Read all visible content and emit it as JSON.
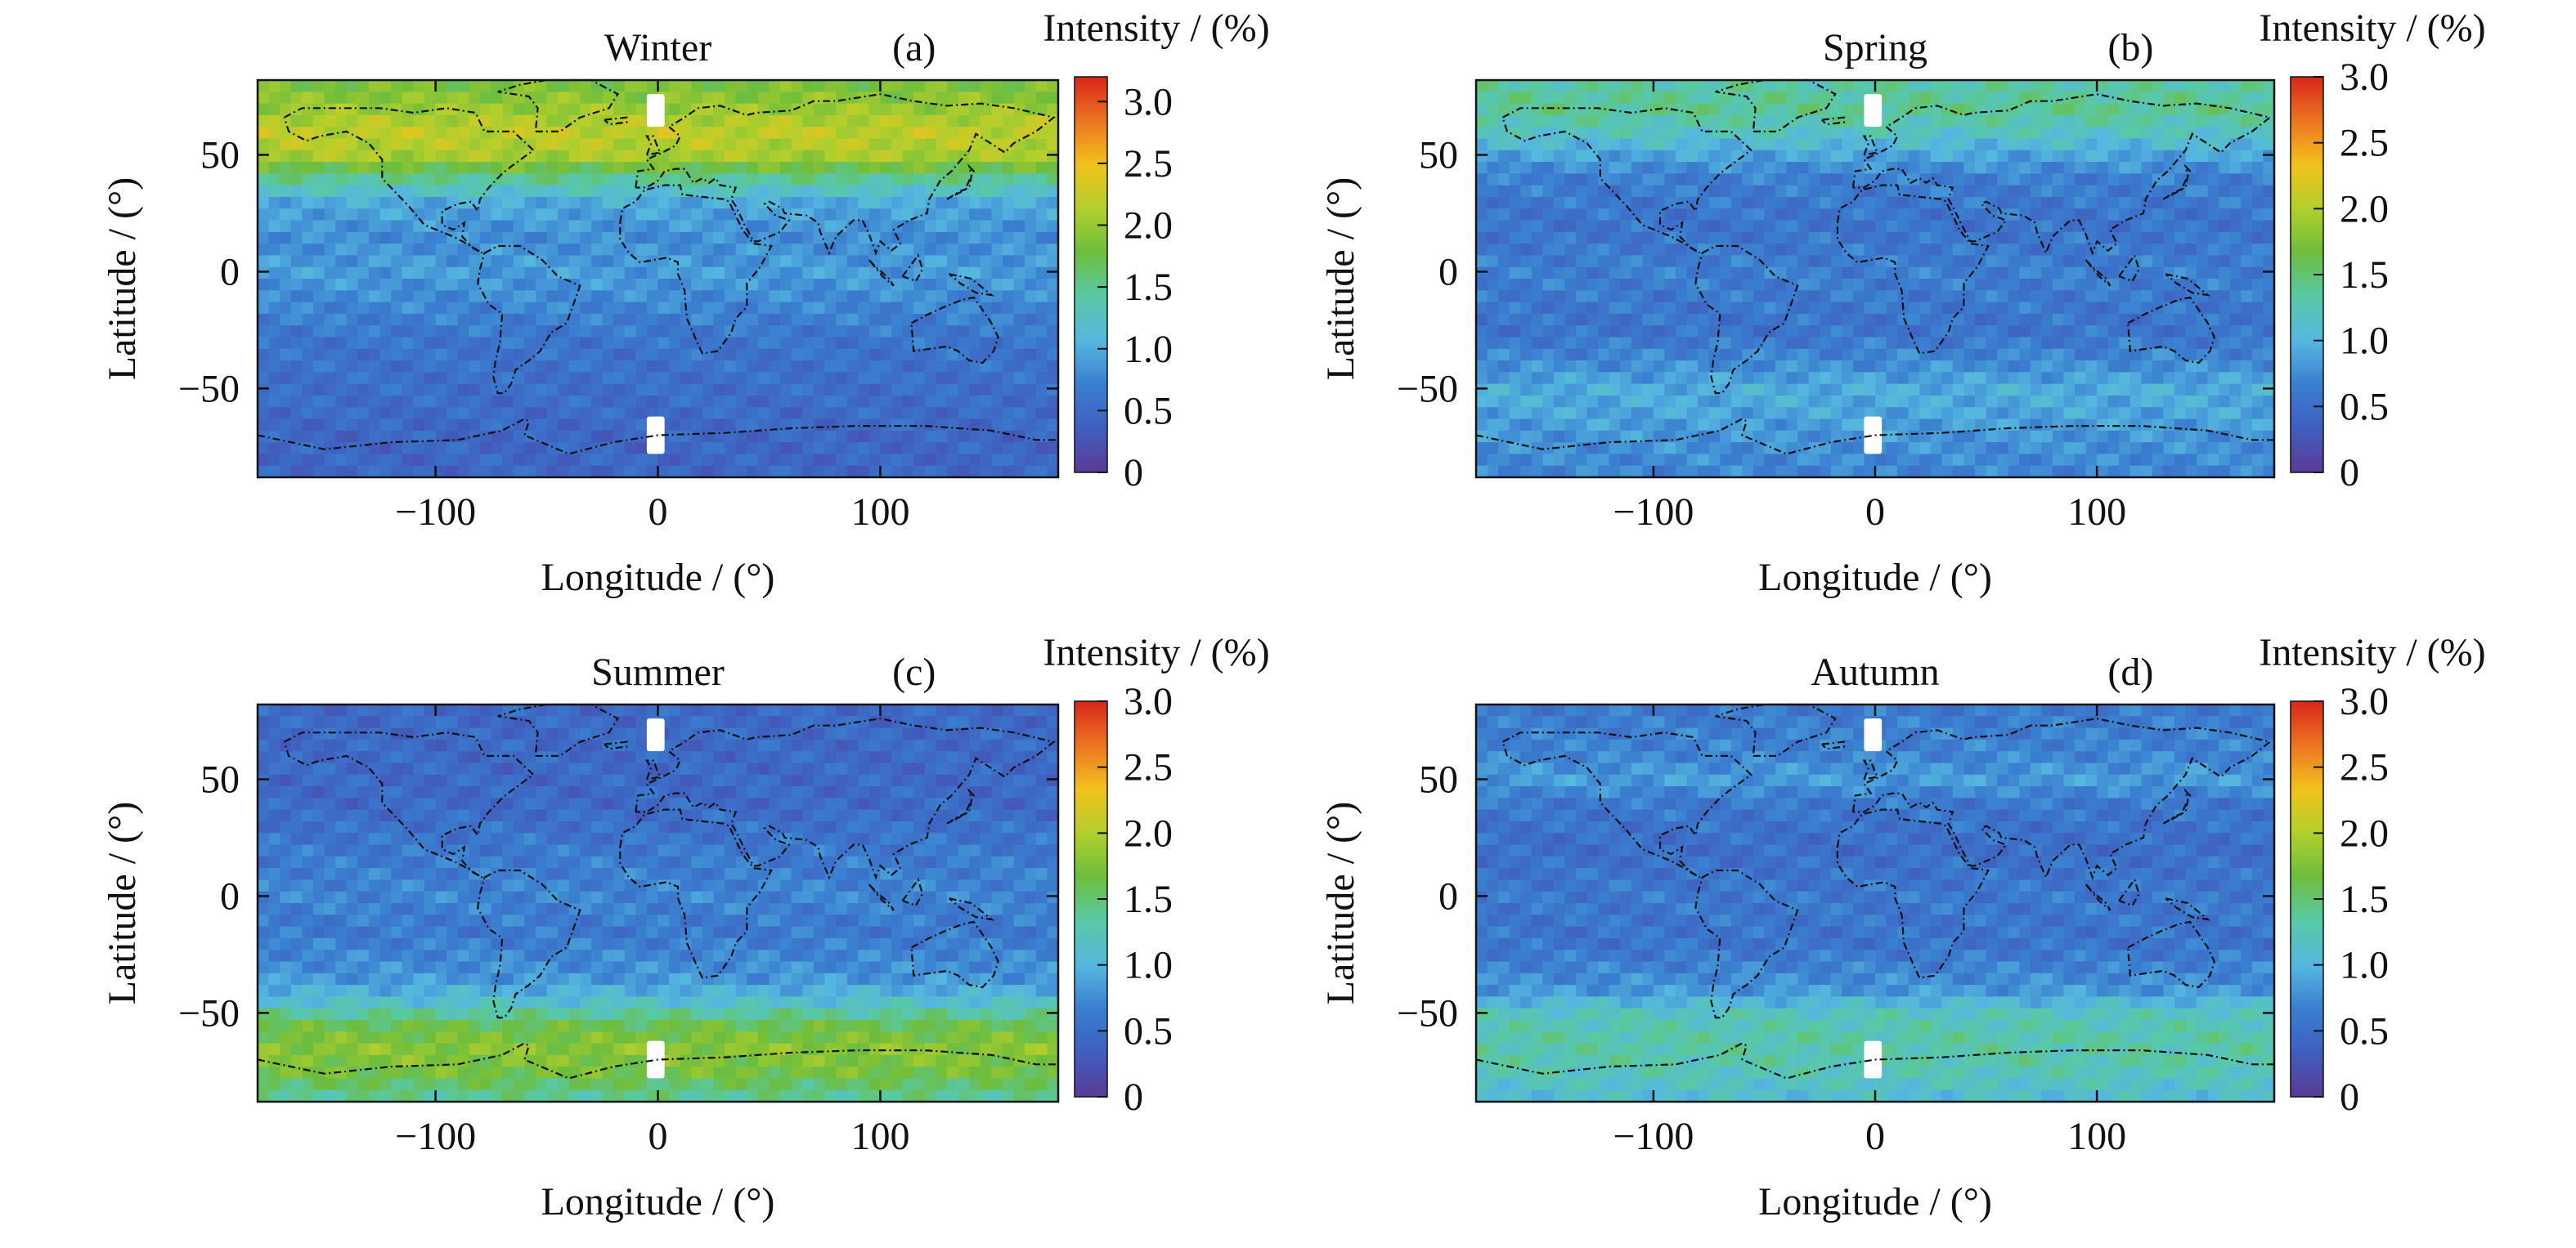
{
  "chart_data": [
    {
      "type": "heatmap",
      "title": "Winter",
      "panel_label": "(a)",
      "xlabel": "Longitude / (°)",
      "ylabel": "Latitude / (°)",
      "colorbar_label": "Intensity / (%)",
      "xlim": [
        -180,
        180
      ],
      "ylim": [
        -88,
        82
      ],
      "xticks": [
        -100,
        0,
        100
      ],
      "yticks": [
        -50,
        0,
        50
      ],
      "clim": [
        0,
        3.2
      ],
      "cticks": [
        "0",
        "0.5",
        "1.0",
        "1.5",
        "2.0",
        "2.5",
        "3.0"
      ],
      "lat_profile": [
        {
          "lat": -85,
          "value": 0.45
        },
        {
          "lat": -70,
          "value": 0.45
        },
        {
          "lat": -60,
          "value": 0.5
        },
        {
          "lat": -45,
          "value": 0.55
        },
        {
          "lat": -30,
          "value": 0.6
        },
        {
          "lat": -15,
          "value": 0.75
        },
        {
          "lat": 0,
          "value": 0.9
        },
        {
          "lat": 15,
          "value": 0.8
        },
        {
          "lat": 30,
          "value": 1.0
        },
        {
          "lat": 40,
          "value": 1.5
        },
        {
          "lat": 50,
          "value": 2.1
        },
        {
          "lat": 60,
          "value": 2.2
        },
        {
          "lat": 70,
          "value": 2.0
        },
        {
          "lat": 82,
          "value": 1.8
        }
      ]
    },
    {
      "type": "heatmap",
      "title": "Spring",
      "panel_label": "(b)",
      "xlabel": "Longitude / (°)",
      "ylabel": "Latitude / (°)",
      "colorbar_label": "Intensity / (%)",
      "xlim": [
        -180,
        180
      ],
      "ylim": [
        -88,
        82
      ],
      "xticks": [
        -100,
        0,
        100
      ],
      "yticks": [
        -50,
        0,
        50
      ],
      "clim": [
        0,
        3.0
      ],
      "cticks": [
        "0",
        "0.5",
        "1.0",
        "1.5",
        "2.0",
        "2.5",
        "3.0"
      ],
      "lat_profile": [
        {
          "lat": -85,
          "value": 0.7
        },
        {
          "lat": -70,
          "value": 0.8
        },
        {
          "lat": -60,
          "value": 0.9
        },
        {
          "lat": -50,
          "value": 0.95
        },
        {
          "lat": -40,
          "value": 0.75
        },
        {
          "lat": -25,
          "value": 0.55
        },
        {
          "lat": 0,
          "value": 0.65
        },
        {
          "lat": 20,
          "value": 0.55
        },
        {
          "lat": 40,
          "value": 0.65
        },
        {
          "lat": 50,
          "value": 0.9
        },
        {
          "lat": 60,
          "value": 1.2
        },
        {
          "lat": 70,
          "value": 1.4
        },
        {
          "lat": 82,
          "value": 1.3
        }
      ]
    },
    {
      "type": "heatmap",
      "title": "Summer",
      "panel_label": "(c)",
      "xlabel": "Longitude / (°)",
      "ylabel": "Latitude / (°)",
      "colorbar_label": "Intensity / (%)",
      "xlim": [
        -180,
        180
      ],
      "ylim": [
        -88,
        82
      ],
      "xticks": [
        -100,
        0,
        100
      ],
      "yticks": [
        -50,
        0,
        50
      ],
      "clim": [
        0,
        3.0
      ],
      "cticks": [
        "0",
        "0.5",
        "1.0",
        "1.5",
        "2.0",
        "2.5",
        "3.0"
      ],
      "lat_profile": [
        {
          "lat": -85,
          "value": 1.4
        },
        {
          "lat": -75,
          "value": 1.7
        },
        {
          "lat": -65,
          "value": 1.8
        },
        {
          "lat": -55,
          "value": 1.6
        },
        {
          "lat": -45,
          "value": 1.1
        },
        {
          "lat": -35,
          "value": 0.8
        },
        {
          "lat": -15,
          "value": 0.6
        },
        {
          "lat": 0,
          "value": 0.7
        },
        {
          "lat": 20,
          "value": 0.6
        },
        {
          "lat": 40,
          "value": 0.45
        },
        {
          "lat": 60,
          "value": 0.45
        },
        {
          "lat": 82,
          "value": 0.45
        }
      ]
    },
    {
      "type": "heatmap",
      "title": "Autumn",
      "panel_label": "(d)",
      "xlabel": "Longitude / (°)",
      "ylabel": "Latitude / (°)",
      "colorbar_label": "Intensity / (%)",
      "xlim": [
        -180,
        180
      ],
      "ylim": [
        -88,
        82
      ],
      "xticks": [
        -100,
        0,
        100
      ],
      "yticks": [
        -50,
        0,
        50
      ],
      "clim": [
        0,
        3.0
      ],
      "cticks": [
        "0",
        "0.5",
        "1.0",
        "1.5",
        "2.0",
        "2.5",
        "3.0"
      ],
      "lat_profile": [
        {
          "lat": -85,
          "value": 1.1
        },
        {
          "lat": -70,
          "value": 1.3
        },
        {
          "lat": -60,
          "value": 1.3
        },
        {
          "lat": -50,
          "value": 1.2
        },
        {
          "lat": -40,
          "value": 0.8
        },
        {
          "lat": -20,
          "value": 0.55
        },
        {
          "lat": 0,
          "value": 0.6
        },
        {
          "lat": 20,
          "value": 0.5
        },
        {
          "lat": 40,
          "value": 0.6
        },
        {
          "lat": 50,
          "value": 0.85
        },
        {
          "lat": 60,
          "value": 0.7
        },
        {
          "lat": 82,
          "value": 0.6
        }
      ]
    }
  ],
  "colormap": [
    "#5b3a96",
    "#3f5fbf",
    "#3a7fd0",
    "#55b7df",
    "#58c9a6",
    "#6dbd3c",
    "#b2cf2c",
    "#f2c21c",
    "#ec7420",
    "#d9261c"
  ],
  "colors": {
    "missing_data": "#ffffff",
    "coastline": "#111111",
    "axes": "#111111"
  }
}
